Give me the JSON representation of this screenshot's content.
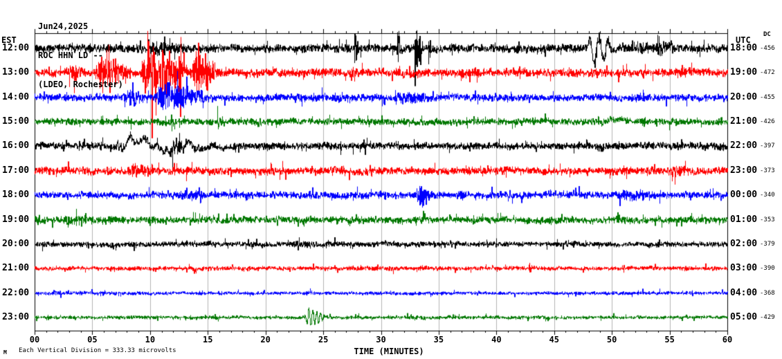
{
  "header": {
    "date": "Jun24,2025",
    "station": "ROC HHN LD --",
    "location": "(LDEO, Rochester)"
  },
  "axes": {
    "left_label": "EST",
    "right_label": "UTC",
    "dc_label": "DC",
    "x_axis_label": "TIME (MINUTES)",
    "x_ticks": [
      "00",
      "05",
      "10",
      "15",
      "20",
      "25",
      "30",
      "35",
      "40",
      "45",
      "50",
      "55",
      "60"
    ]
  },
  "footer": {
    "scale_note": "Each Vertical Division =  333.33 microvolts",
    "watermark": "M"
  },
  "chart_data": {
    "type": "line",
    "title": "ROC HHN LD -- (LDEO, Rochester) Jun24,2025 helicorder",
    "xlabel": "TIME (MINUTES)",
    "ylabel": "",
    "x_range": [
      0,
      60
    ],
    "x_tick_interval_minutes": 5,
    "grid": "vertical-5min",
    "trace_colors_cycle": [
      "#000000",
      "#ff0000",
      "#0000ff",
      "#007700"
    ],
    "vertical_division_microvolts": 333.33,
    "traces": [
      {
        "est": "12:00",
        "utc": "18:00",
        "dc": "-456",
        "color": "#000000",
        "base_amp": 7,
        "events": [
          {
            "m0": 9,
            "m1": 16,
            "amp": 13
          },
          {
            "m0": 27.6,
            "m1": 28.1,
            "amp": 32
          },
          {
            "m0": 31.3,
            "m1": 31.8,
            "amp": 42
          },
          {
            "m0": 32.8,
            "m1": 33.7,
            "amp": 55
          },
          {
            "m0": 34.0,
            "m1": 34.4,
            "amp": 30
          },
          {
            "m0": 47.8,
            "m1": 50.3,
            "amp": 26,
            "type": "burst",
            "freq": 1.2
          },
          {
            "m0": 48,
            "m1": 51,
            "amp": 14
          },
          {
            "m0": 50,
            "m1": 60,
            "amp": 11
          },
          {
            "m0": 53.5,
            "m1": 56.5,
            "amp": 14
          }
        ]
      },
      {
        "est": "13:00",
        "utc": "19:00",
        "dc": "-472",
        "color": "#ff0000",
        "base_amp": 7,
        "events": [
          {
            "m0": 2.5,
            "m1": 5,
            "amp": 18
          },
          {
            "m0": 5,
            "m1": 9,
            "amp": 32
          },
          {
            "m0": 9,
            "m1": 13.5,
            "amp": 60
          },
          {
            "m0": 12.4,
            "m1": 12.9,
            "amp": 95
          },
          {
            "m0": 13.5,
            "m1": 16.2,
            "amp": 45
          },
          {
            "m0": 31,
            "m1": 33.5,
            "amp": 10,
            "type": "wander"
          },
          {
            "m0": 55,
            "m1": 60,
            "amp": 9
          }
        ]
      },
      {
        "est": "14:00",
        "utc": "20:00",
        "dc": "-455",
        "color": "#0000ff",
        "base_amp": 6,
        "events": [
          {
            "m0": 7.5,
            "m1": 10,
            "amp": 18
          },
          {
            "m0": 10,
            "m1": 16.2,
            "amp": 26
          },
          {
            "m0": 10.5,
            "m1": 11,
            "amp": 40
          },
          {
            "m0": 24.8,
            "m1": 25.3,
            "amp": 16
          },
          {
            "m0": 30.5,
            "m1": 37,
            "amp": 12
          },
          {
            "m0": 50,
            "m1": 60,
            "amp": 8
          }
        ]
      },
      {
        "est": "15:00",
        "utc": "21:00",
        "dc": "-426",
        "color": "#007700",
        "base_amp": 5.5,
        "events": [
          {
            "m0": 11.7,
            "m1": 12.3,
            "amp": 16
          },
          {
            "m0": 15.7,
            "m1": 16.3,
            "amp": 14
          },
          {
            "m0": 19.2,
            "m1": 19.8,
            "amp": 12
          },
          {
            "m0": 48.5,
            "m1": 51.5,
            "amp": 9,
            "type": "wander"
          }
        ]
      },
      {
        "est": "16:00",
        "utc": "22:00",
        "dc": "-397",
        "color": "#000000",
        "base_amp": 6,
        "events": [
          {
            "m0": 5,
            "m1": 18,
            "amp": 20,
            "type": "wander"
          },
          {
            "m0": 11.5,
            "m1": 14,
            "amp": 18
          },
          {
            "m0": 24.5,
            "m1": 26,
            "amp": 12
          },
          {
            "m0": 48.5,
            "m1": 50,
            "amp": 12
          },
          {
            "m0": 55,
            "m1": 58,
            "amp": 9
          }
        ]
      },
      {
        "est": "17:00",
        "utc": "23:00",
        "dc": "-373",
        "color": "#ff0000",
        "base_amp": 6.5,
        "events": [
          {
            "m0": 7.5,
            "m1": 13,
            "amp": 13
          },
          {
            "m0": 20,
            "m1": 23,
            "amp": 9
          },
          {
            "m0": 37.5,
            "m1": 38.2,
            "amp": 10
          },
          {
            "m0": 54,
            "m1": 60,
            "amp": 10
          }
        ]
      },
      {
        "est": "18:00",
        "utc": "00:00",
        "dc": "-340",
        "color": "#0000ff",
        "base_amp": 6,
        "events": [
          {
            "m0": 13,
            "m1": 16,
            "amp": 10
          },
          {
            "m0": 32.8,
            "m1": 35,
            "amp": 22
          },
          {
            "m0": 38,
            "m1": 39,
            "amp": 9
          },
          {
            "m0": 49,
            "m1": 60,
            "amp": 10
          }
        ]
      },
      {
        "est": "19:00",
        "utc": "01:00",
        "dc": "-353",
        "color": "#007700",
        "base_amp": 6,
        "events": [
          {
            "m0": 0,
            "m1": 16,
            "amp": 9
          },
          {
            "m0": 23,
            "m1": 24,
            "amp": 8
          },
          {
            "m0": 33,
            "m1": 35,
            "amp": 8
          }
        ]
      },
      {
        "est": "20:00",
        "utc": "02:00",
        "dc": "-379",
        "color": "#000000",
        "base_amp": 4.5,
        "events": [
          {
            "m0": 20,
            "m1": 34,
            "amp": 6
          },
          {
            "m0": 33.1,
            "m1": 33.7,
            "amp": 9
          }
        ]
      },
      {
        "est": "21:00",
        "utc": "03:00",
        "dc": "-390",
        "color": "#ff0000",
        "base_amp": 3.5,
        "events": [
          {
            "m0": 25,
            "m1": 36,
            "amp": 5
          },
          {
            "m0": 42.7,
            "m1": 43.3,
            "amp": 10
          },
          {
            "m0": 55,
            "m1": 60,
            "amp": 5
          }
        ]
      },
      {
        "est": "22:00",
        "utc": "04:00",
        "dc": "-368",
        "color": "#0000ff",
        "base_amp": 3,
        "events": [
          {
            "m0": 0,
            "m1": 10,
            "amp": 4
          },
          {
            "m0": 28,
            "m1": 31,
            "amp": 5,
            "type": "wander"
          }
        ]
      },
      {
        "est": "23:00",
        "utc": "05:00",
        "dc": "-429",
        "color": "#007700",
        "base_amp": 3,
        "events": [
          {
            "m0": 23.3,
            "m1": 25.2,
            "amp": 13,
            "type": "burst",
            "freq": 3
          },
          {
            "m0": 23.3,
            "m1": 25.2,
            "amp": 5
          },
          {
            "m0": 32.5,
            "m1": 36,
            "amp": 4.5
          }
        ]
      }
    ]
  }
}
